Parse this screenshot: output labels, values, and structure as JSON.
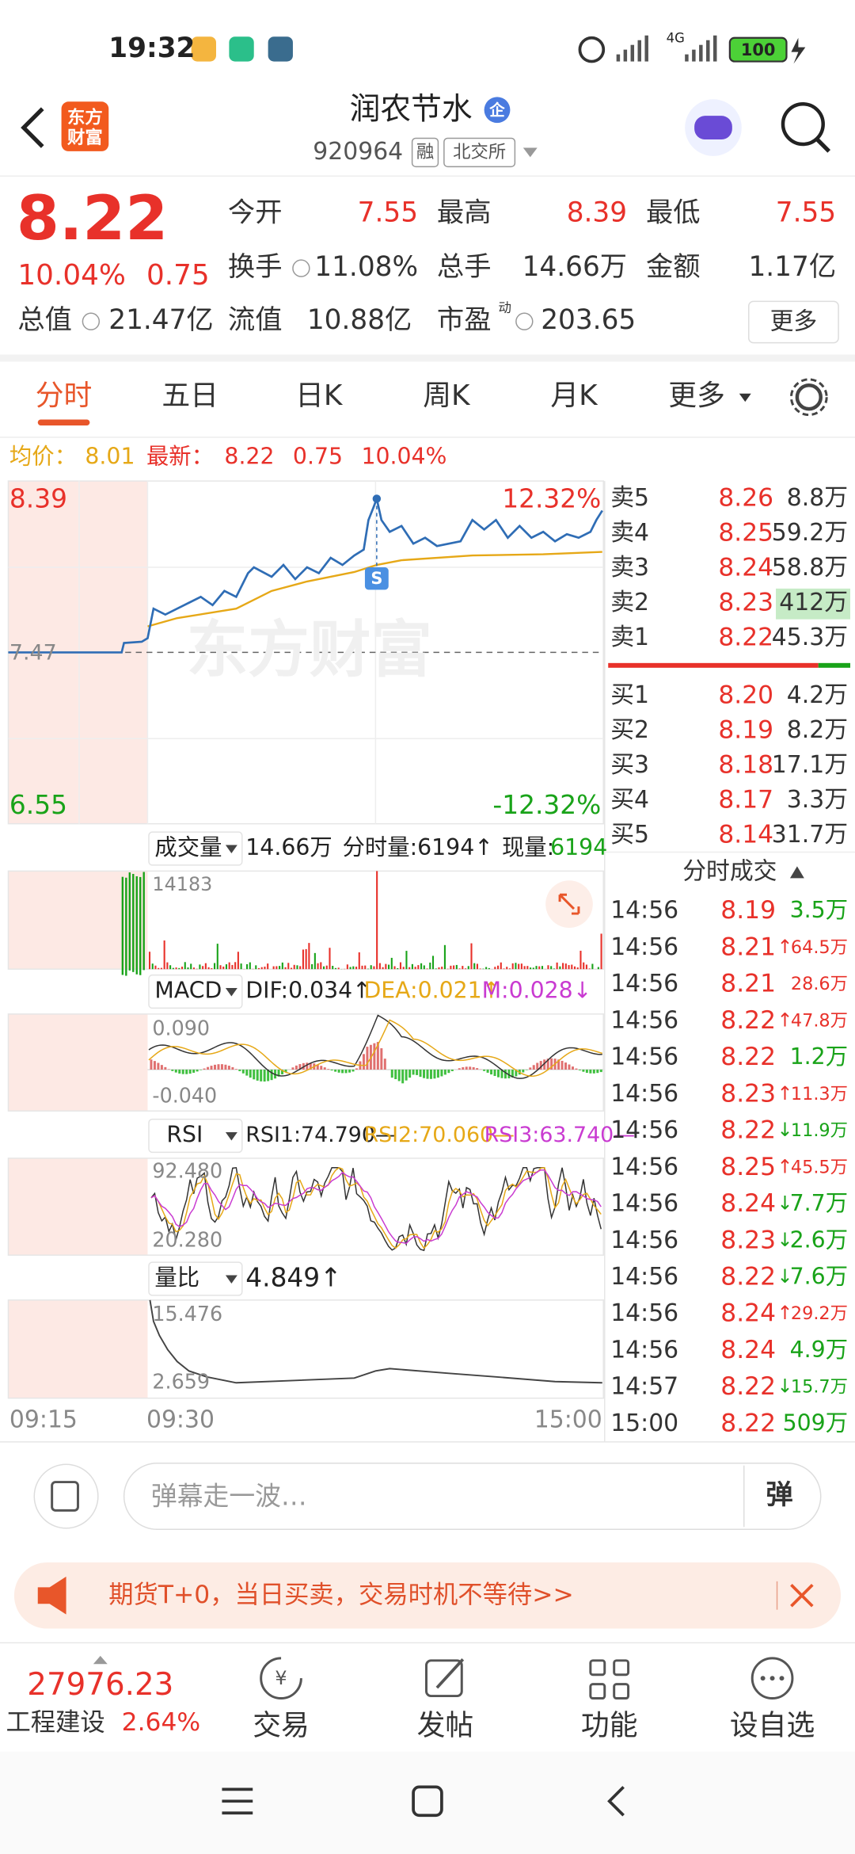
{
  "status_bar": {
    "time": "19:32",
    "network": "4G",
    "battery": "100"
  },
  "header": {
    "logo": [
      "东方",
      "财富"
    ],
    "title": "润农节水",
    "title_badge": "企",
    "code": "920964",
    "tags": [
      "融",
      "北交所"
    ]
  },
  "quote": {
    "price": "8.22",
    "change_pct": "10.04%",
    "change": "0.75",
    "fields": [
      {
        "label": "今开",
        "value": "7.55",
        "color": "#e8312a"
      },
      {
        "label": "最高",
        "value": "8.39",
        "color": "#e8312a"
      },
      {
        "label": "最低",
        "value": "7.55",
        "color": "#e8312a"
      },
      {
        "label": "换手",
        "value": "11.08%"
      },
      {
        "label": "总手",
        "value": "14.66万"
      },
      {
        "label": "金额",
        "value": "1.17亿"
      },
      {
        "label": "总值",
        "value": "21.47亿"
      },
      {
        "label": "流值",
        "value": "10.88亿"
      },
      {
        "label": "市盈",
        "label_sup": "动",
        "value": "203.65"
      }
    ],
    "more_button": "更多"
  },
  "tabs": {
    "items": [
      "分时",
      "五日",
      "日K",
      "周K",
      "月K",
      "更多"
    ],
    "active": 0
  },
  "summary": {
    "avg_label": "均价：",
    "avg": "8.01",
    "last_label": "最新：",
    "last": "8.22",
    "change": "0.75",
    "change_pct": "10.04%"
  },
  "intraday": {
    "price_high": "8.39",
    "prev_close": "7.47",
    "price_low": "6.55",
    "pct_high": "12.32%",
    "pct_low": "-12.32%",
    "marker": "S",
    "watermark": "东方财富",
    "time_labels": [
      "09:15",
      "09:30",
      "15:00"
    ]
  },
  "volume": {
    "name": "成交量",
    "total": "14.66万",
    "minute_volume": "分时量:6194↑",
    "current_volume_label": "现量:",
    "current_volume": "6194",
    "max": "14183"
  },
  "macd": {
    "name": "MACD",
    "dif": "DIF:0.034↑",
    "dea": "DEA:0.021↑",
    "m": "M:0.028↓",
    "max": "0.090",
    "min": "-0.040"
  },
  "rsi": {
    "name": "RSI",
    "rsi1": "RSI1:74.790—",
    "rsi2": "RSI2:70.060—",
    "rsi3": "RSI3:63.740—",
    "max": "92.480",
    "min": "20.280"
  },
  "volume_ratio": {
    "name": "量比",
    "value": "4.849↑",
    "max": "15.476",
    "min": "2.659"
  },
  "order_book": {
    "asks": [
      {
        "label": "卖5",
        "price": "8.26",
        "volume": "8.8万"
      },
      {
        "label": "卖4",
        "price": "8.25",
        "volume": "59.2万"
      },
      {
        "label": "卖3",
        "price": "8.24",
        "volume": "58.8万"
      },
      {
        "label": "卖2",
        "price": "8.23",
        "volume": "412万",
        "highlight": true
      },
      {
        "label": "卖1",
        "price": "8.22",
        "volume": "45.3万"
      }
    ],
    "bids": [
      {
        "label": "买1",
        "price": "8.20",
        "volume": "4.2万"
      },
      {
        "label": "买2",
        "price": "8.19",
        "volume": "8.2万"
      },
      {
        "label": "买3",
        "price": "8.18",
        "volume": "17.1万"
      },
      {
        "label": "买4",
        "price": "8.17",
        "volume": "3.3万"
      },
      {
        "label": "买5",
        "price": "8.14",
        "volume": "31.7万"
      }
    ]
  },
  "trades": {
    "title": "分时成交",
    "rows": [
      {
        "time": "14:56",
        "price": "8.19",
        "volume": "3.5万",
        "color": "#19a319"
      },
      {
        "time": "14:56",
        "price": "8.21",
        "arrow": "↑",
        "volume": "64.5万",
        "color": "#e8312a"
      },
      {
        "time": "14:56",
        "price": "8.21",
        "volume": "28.6万",
        "color": "#e8312a"
      },
      {
        "time": "14:56",
        "price": "8.22",
        "arrow": "↑",
        "volume": "47.8万",
        "color": "#e8312a"
      },
      {
        "time": "14:56",
        "price": "8.22",
        "volume": "1.2万",
        "color": "#19a319"
      },
      {
        "time": "14:56",
        "price": "8.23",
        "arrow": "↑",
        "volume": "11.3万",
        "color": "#e8312a"
      },
      {
        "time": "14:56",
        "price": "8.22",
        "arrow": "↓",
        "volume": "11.9万",
        "color": "#19a319"
      },
      {
        "time": "14:56",
        "price": "8.25",
        "arrow": "↑",
        "volume": "45.5万",
        "color": "#e8312a"
      },
      {
        "time": "14:56",
        "price": "8.24",
        "arrow": "↓",
        "volume": "7.7万",
        "color": "#19a319"
      },
      {
        "time": "14:56",
        "price": "8.23",
        "arrow": "↓",
        "volume": "2.6万",
        "color": "#19a319"
      },
      {
        "time": "14:56",
        "price": "8.22",
        "arrow": "↓",
        "volume": "7.6万",
        "color": "#19a319"
      },
      {
        "time": "14:56",
        "price": "8.24",
        "arrow": "↑",
        "volume": "29.2万",
        "color": "#e8312a"
      },
      {
        "time": "14:56",
        "price": "8.24",
        "volume": "4.9万",
        "color": "#19a319"
      },
      {
        "time": "14:57",
        "price": "8.22",
        "arrow": "↓",
        "volume": "15.7万",
        "color": "#19a319"
      },
      {
        "time": "15:00",
        "price": "8.22",
        "volume": "509万",
        "color": "#19a319"
      }
    ]
  },
  "comment_bar": {
    "placeholder": "弹幕走一波…",
    "button": "弹"
  },
  "banner": {
    "text": "期货T+0，当日买卖，交易时机不等待>>"
  },
  "bottom_bar": {
    "index_value": "27976.23",
    "sector": "工程建设",
    "sector_change": "2.64%",
    "trade_icon": "¥",
    "actions": [
      "交易",
      "发帖",
      "功能",
      "设自选"
    ]
  }
}
